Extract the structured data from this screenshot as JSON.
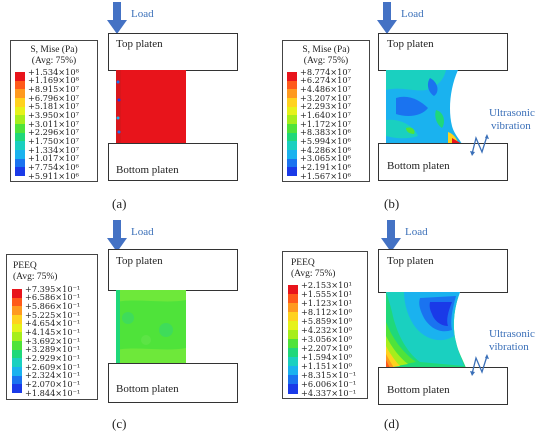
{
  "common": {
    "load_label": "Load",
    "top_platen": "Top platen",
    "bottom_platen": "Bottom platen",
    "ultrasonic": "Ultrasonic",
    "vibration": "vibration",
    "arrow_color": "#4472c4"
  },
  "panels": [
    {
      "caption": "(a)",
      "legend_title1": "S, Mise (Pa)",
      "legend_title2": "(Avg: 75%)",
      "ticks": [
        "+1.534×10⁸",
        "+1.169×10⁸",
        "+8.915×10⁷",
        "+6.796×10⁷",
        "+5.181×10⁷",
        "+3.950×10⁷",
        "+3.011×10⁷",
        "+2.296×10⁷",
        "+1.750×10⁷",
        "+1.334×10⁷",
        "+1.017×10⁷",
        "+7.754×10⁶",
        "+5.911×10⁶"
      ],
      "has_vibration": false,
      "field": "red-uniform"
    },
    {
      "caption": "(b)",
      "legend_title1": "S, Mise (Pa)",
      "legend_title2": "(Avg: 75%)",
      "ticks": [
        "+8.774×10⁷",
        "+6.274×10⁷",
        "+4.486×10⁷",
        "+3.207×10⁷",
        "+2.293×10⁷",
        "+1.640×10⁷",
        "+1.172×10⁷",
        "+8.383×10⁶",
        "+5.994×10⁶",
        "+4.286×10⁶",
        "+3.065×10⁶",
        "+2.191×10⁶",
        "+1.567×10⁶"
      ],
      "has_vibration": true,
      "field": "cyan-mixed"
    },
    {
      "caption": "(c)",
      "legend_title1": "PEEQ",
      "legend_title2": "(Avg: 75%)",
      "ticks": [
        "+7.395×10⁻¹",
        "+6.586×10⁻¹",
        "+5.866×10⁻¹",
        "+5.225×10⁻¹",
        "+4.654×10⁻¹",
        "+4.145×10⁻¹",
        "+3.692×10⁻¹",
        "+3.289×10⁻¹",
        "+2.929×10⁻¹",
        "+2.609×10⁻¹",
        "+2.324×10⁻¹",
        "+2.070×10⁻¹",
        "+1.844×10⁻¹"
      ],
      "has_vibration": false,
      "field": "green-uniform"
    },
    {
      "caption": "(d)",
      "legend_title1": "PEEQ",
      "legend_title2": "(Avg: 75%)",
      "ticks": [
        "+2.153×10¹",
        "+1.555×10¹",
        "+1.123×10¹",
        "+8.112×10⁰",
        "+5.859×10⁰",
        "+4.232×10⁰",
        "+3.056×10⁰",
        "+2.207×10⁰",
        "+1.594×10⁰",
        "+1.151×10⁰",
        "+8.315×10⁻¹",
        "+6.006×10⁻¹",
        "+4.337×10⁻¹"
      ],
      "has_vibration": true,
      "field": "gradient-barrel"
    }
  ],
  "legend_colors": [
    "#e8141b",
    "#ff5a1a",
    "#ff9a1f",
    "#ffd21e",
    "#e6f21a",
    "#a6ee1c",
    "#4fe33a",
    "#1fd87a",
    "#1ad0c0",
    "#1ab2ef",
    "#1a73f0",
    "#1a3ae8",
    "#1a1ac8"
  ]
}
